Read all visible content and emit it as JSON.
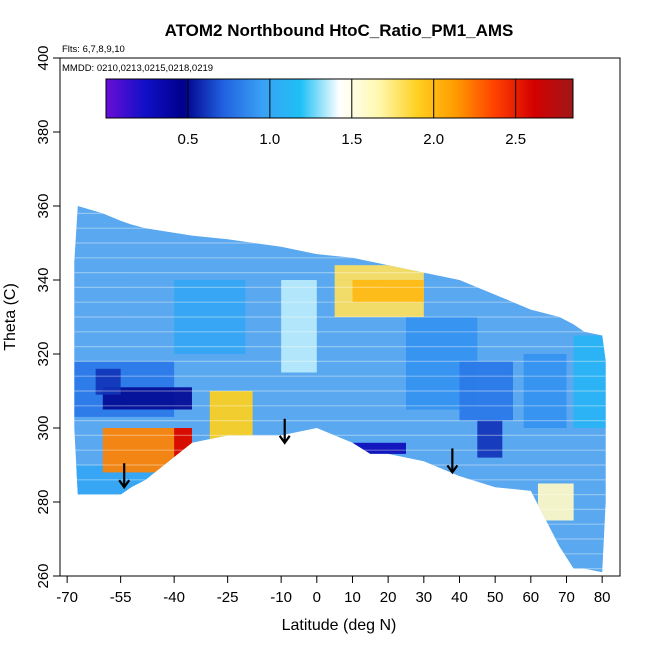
{
  "chart_data": {
    "type": "heatmap",
    "title": "ATOM2 Northbound HtoC_Ratio_PM1_AMS",
    "annotations": [
      "Flts: 6,7,8,9,10",
      "MMDD: 0210,0213,0215,0218,0219"
    ],
    "xlabel": "Latitude (deg N)",
    "ylabel": "Theta (C)",
    "xlim": [
      -72,
      85
    ],
    "ylim": [
      260,
      400
    ],
    "x_ticks": [
      -70,
      -55,
      -40,
      -25,
      -10,
      0,
      10,
      20,
      30,
      40,
      50,
      60,
      70,
      80
    ],
    "y_ticks": [
      260,
      280,
      300,
      320,
      340,
      360,
      380,
      400
    ],
    "grid": false,
    "colorbar": {
      "range": [
        0,
        2.85
      ],
      "ticks": [
        0.5,
        1.0,
        1.5,
        2.0,
        2.5
      ],
      "tick_labels": [
        "0.5",
        "1.0",
        "1.5",
        "2.0",
        "2.5"
      ],
      "colors": [
        "#6a0dd6",
        "#1010c8",
        "#00008b",
        "#2060e0",
        "#3aa0f5",
        "#1ec0f5",
        "#ffffff",
        "#fff8b0",
        "#ffd020",
        "#ff9a00",
        "#ff4000",
        "#d40000",
        "#a01818"
      ]
    },
    "data_envelope": {
      "latitude": [
        -68,
        -67,
        -60,
        -55,
        -52,
        -48,
        -35,
        -25,
        -10,
        0,
        10,
        15,
        20,
        30,
        40,
        50,
        60,
        68,
        72,
        75,
        80,
        81,
        81,
        75,
        70,
        60,
        50,
        40,
        30,
        20,
        10,
        0,
        -10,
        -20,
        -35,
        -50,
        -60,
        -66,
        -68
      ],
      "theta_bottom": [
        300,
        282,
        282,
        282,
        284,
        286,
        296,
        298,
        298,
        300,
        296,
        293,
        293,
        291,
        287,
        284,
        283,
        268,
        262,
        262,
        261,
        280,
        null,
        null,
        null,
        null,
        null,
        null,
        null,
        null,
        null,
        null,
        null,
        null,
        null,
        null,
        null,
        null,
        null
      ],
      "theta_top": [
        345,
        360,
        358,
        356,
        355,
        354,
        352,
        351,
        349,
        347,
        346,
        345,
        344,
        342,
        340,
        336,
        332,
        330,
        328,
        326,
        325,
        318,
        null,
        null,
        null,
        null,
        null,
        null,
        null,
        null,
        null,
        null,
        null,
        null,
        null,
        null,
        null,
        null,
        null
      ]
    },
    "regions": [
      {
        "lat": [
          -68,
          -45
        ],
        "theta": [
          282,
          290
        ],
        "ratio": 1.0
      },
      {
        "lat": [
          -60,
          -35
        ],
        "theta": [
          288,
          300
        ],
        "ratio": 2.2
      },
      {
        "lat": [
          -40,
          -35
        ],
        "theta": [
          292,
          300
        ],
        "ratio": 2.6
      },
      {
        "lat": [
          -30,
          -18
        ],
        "theta": [
          297,
          310
        ],
        "ratio": 1.9
      },
      {
        "lat": [
          -68,
          -40
        ],
        "theta": [
          303,
          318
        ],
        "ratio": 0.8
      },
      {
        "lat": [
          -60,
          -35
        ],
        "theta": [
          305,
          311
        ],
        "ratio": 0.5
      },
      {
        "lat": [
          -62,
          -55
        ],
        "theta": [
          309,
          316
        ],
        "ratio": 0.6
      },
      {
        "lat": [
          -40,
          -20
        ],
        "theta": [
          320,
          340
        ],
        "ratio": 1.0
      },
      {
        "lat": [
          -10,
          0
        ],
        "theta": [
          315,
          340
        ],
        "ratio": 1.35
      },
      {
        "lat": [
          5,
          30
        ],
        "theta": [
          330,
          344
        ],
        "ratio": 1.8
      },
      {
        "lat": [
          10,
          30
        ],
        "theta": [
          334,
          340
        ],
        "ratio": 2.0
      },
      {
        "lat": [
          25,
          45
        ],
        "theta": [
          305,
          330
        ],
        "ratio": 0.9
      },
      {
        "lat": [
          40,
          55
        ],
        "theta": [
          302,
          318
        ],
        "ratio": 0.8
      },
      {
        "lat": [
          45,
          52
        ],
        "theta": [
          292,
          302
        ],
        "ratio": 0.6
      },
      {
        "lat": [
          58,
          70
        ],
        "theta": [
          300,
          320
        ],
        "ratio": 0.9
      },
      {
        "lat": [
          62,
          72
        ],
        "theta": [
          275,
          285
        ],
        "ratio": 1.6
      },
      {
        "lat": [
          5,
          25
        ],
        "theta": [
          293,
          296
        ],
        "ratio": 0.3
      },
      {
        "lat": [
          72,
          81
        ],
        "theta": [
          300,
          325
        ],
        "ratio": 1.1
      }
    ],
    "markers": {
      "type": "down-arrow",
      "latitude": [
        -54,
        -9,
        38
      ],
      "theta": [
        284,
        296,
        288
      ]
    }
  }
}
